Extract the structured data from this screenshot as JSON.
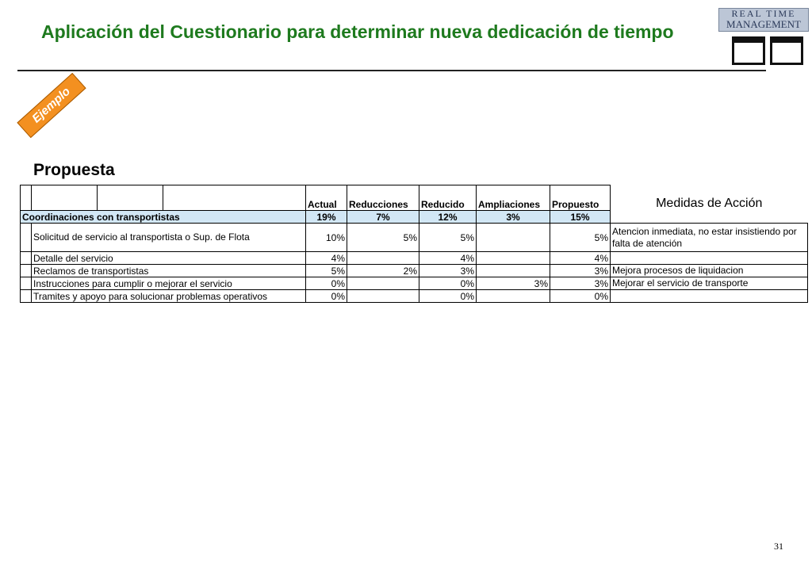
{
  "header": {
    "title": "Aplicación del Cuestionario para determinar nueva dedicación de tiempo",
    "logo_top": "REAL TIME",
    "logo_bottom": "MANAGEMENT"
  },
  "badge": "Ejemplo",
  "section": "Propuesta",
  "table": {
    "columns": [
      "Actual",
      "Reducciones",
      "Reducido",
      "Ampliaciones",
      "Propuesto"
    ],
    "action_header": "Medidas de Acción",
    "group": {
      "label": "Coordinaciones con transportistas",
      "cells": [
        "19%",
        "7%",
        "12%",
        "3%",
        "15%"
      ]
    },
    "rows": [
      [
        "Solicitud de servicio al transportista o Sup. de Flota",
        "10%",
        "5%",
        "5%",
        null,
        "5%",
        "Atencion inmediata, no estar insistiendo por falta de atención"
      ],
      [
        "Detalle del servicio",
        "4%",
        null,
        "4%",
        null,
        "4%",
        null
      ],
      [
        "Reclamos de transportistas",
        "5%",
        "2%",
        "3%",
        null,
        "3%",
        "Mejora procesos de liquidacion"
      ],
      [
        "Instrucciones para cumplir o mejorar el servicio",
        "0%",
        null,
        "0%",
        "3%",
        "3%",
        "Mejorar el servicio de transporte"
      ],
      [
        "Tramites y apoyo  para solucionar problemas operativos",
        "0%",
        null,
        "0%",
        null,
        "0%",
        null
      ]
    ]
  },
  "page_number": "31"
}
